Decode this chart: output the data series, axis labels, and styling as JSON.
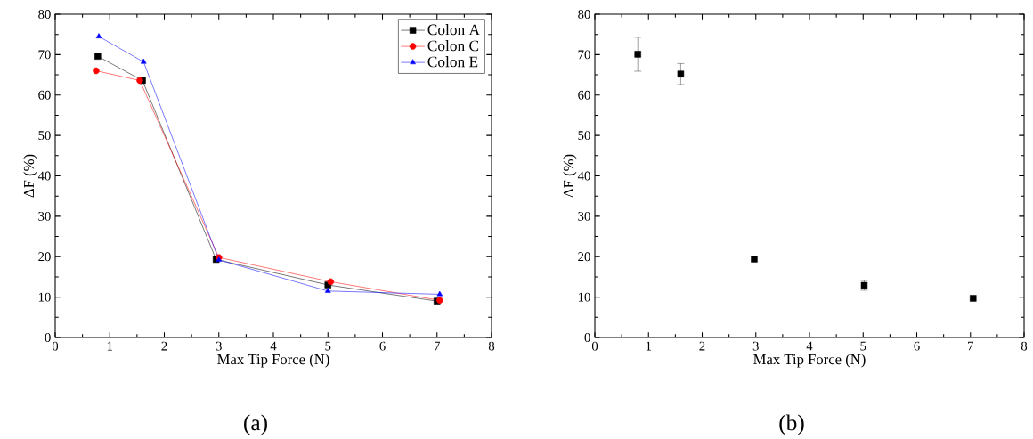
{
  "chart_data": [
    {
      "type": "line",
      "xlabel": "Max Tip Force (N)",
      "ylabel": "ΔF (%)",
      "xlim": [
        0,
        8
      ],
      "ylim": [
        0,
        80
      ],
      "xticks": [
        0,
        1,
        2,
        3,
        4,
        5,
        6,
        7,
        8
      ],
      "yticks": [
        0,
        10,
        20,
        30,
        40,
        50,
        60,
        70,
        80
      ],
      "legend": "top right",
      "grid": false,
      "series": [
        {
          "name": "Colon A",
          "color": "#000000",
          "marker": "square",
          "x": [
            0.78,
            1.6,
            2.95,
            5.0,
            7.0
          ],
          "values": [
            69.6,
            63.6,
            19.3,
            13.0,
            9.0
          ]
        },
        {
          "name": "Colon C",
          "color": "#ff0000",
          "marker": "circle",
          "x": [
            0.75,
            1.55,
            3.0,
            5.05,
            7.05
          ],
          "values": [
            66.0,
            63.6,
            19.8,
            13.8,
            9.2
          ]
        },
        {
          "name": "Colon E",
          "color": "#0000ff",
          "marker": "triangle",
          "x": [
            0.8,
            1.62,
            3.0,
            5.0,
            7.05
          ],
          "values": [
            74.5,
            68.2,
            19.2,
            11.5,
            10.7
          ]
        }
      ],
      "annotations": [
        "(a)"
      ]
    },
    {
      "type": "scatter",
      "xlabel": "Max Tip Force (N)",
      "ylabel": "ΔF (%)",
      "xlim": [
        0,
        8
      ],
      "ylim": [
        0,
        80
      ],
      "xticks": [
        0,
        1,
        2,
        3,
        4,
        5,
        6,
        7,
        8
      ],
      "yticks": [
        0,
        10,
        20,
        30,
        40,
        50,
        60,
        70,
        80
      ],
      "grid": false,
      "marker": "square",
      "series": [
        {
          "color": "#000000",
          "x": [
            0.8,
            1.6,
            2.97,
            5.02,
            7.05
          ],
          "values": [
            70.1,
            65.2,
            19.4,
            12.9,
            9.7
          ],
          "errors": [
            4.2,
            2.6,
            null,
            1.2,
            null
          ]
        }
      ],
      "annotations": [
        "(b)"
      ]
    }
  ]
}
